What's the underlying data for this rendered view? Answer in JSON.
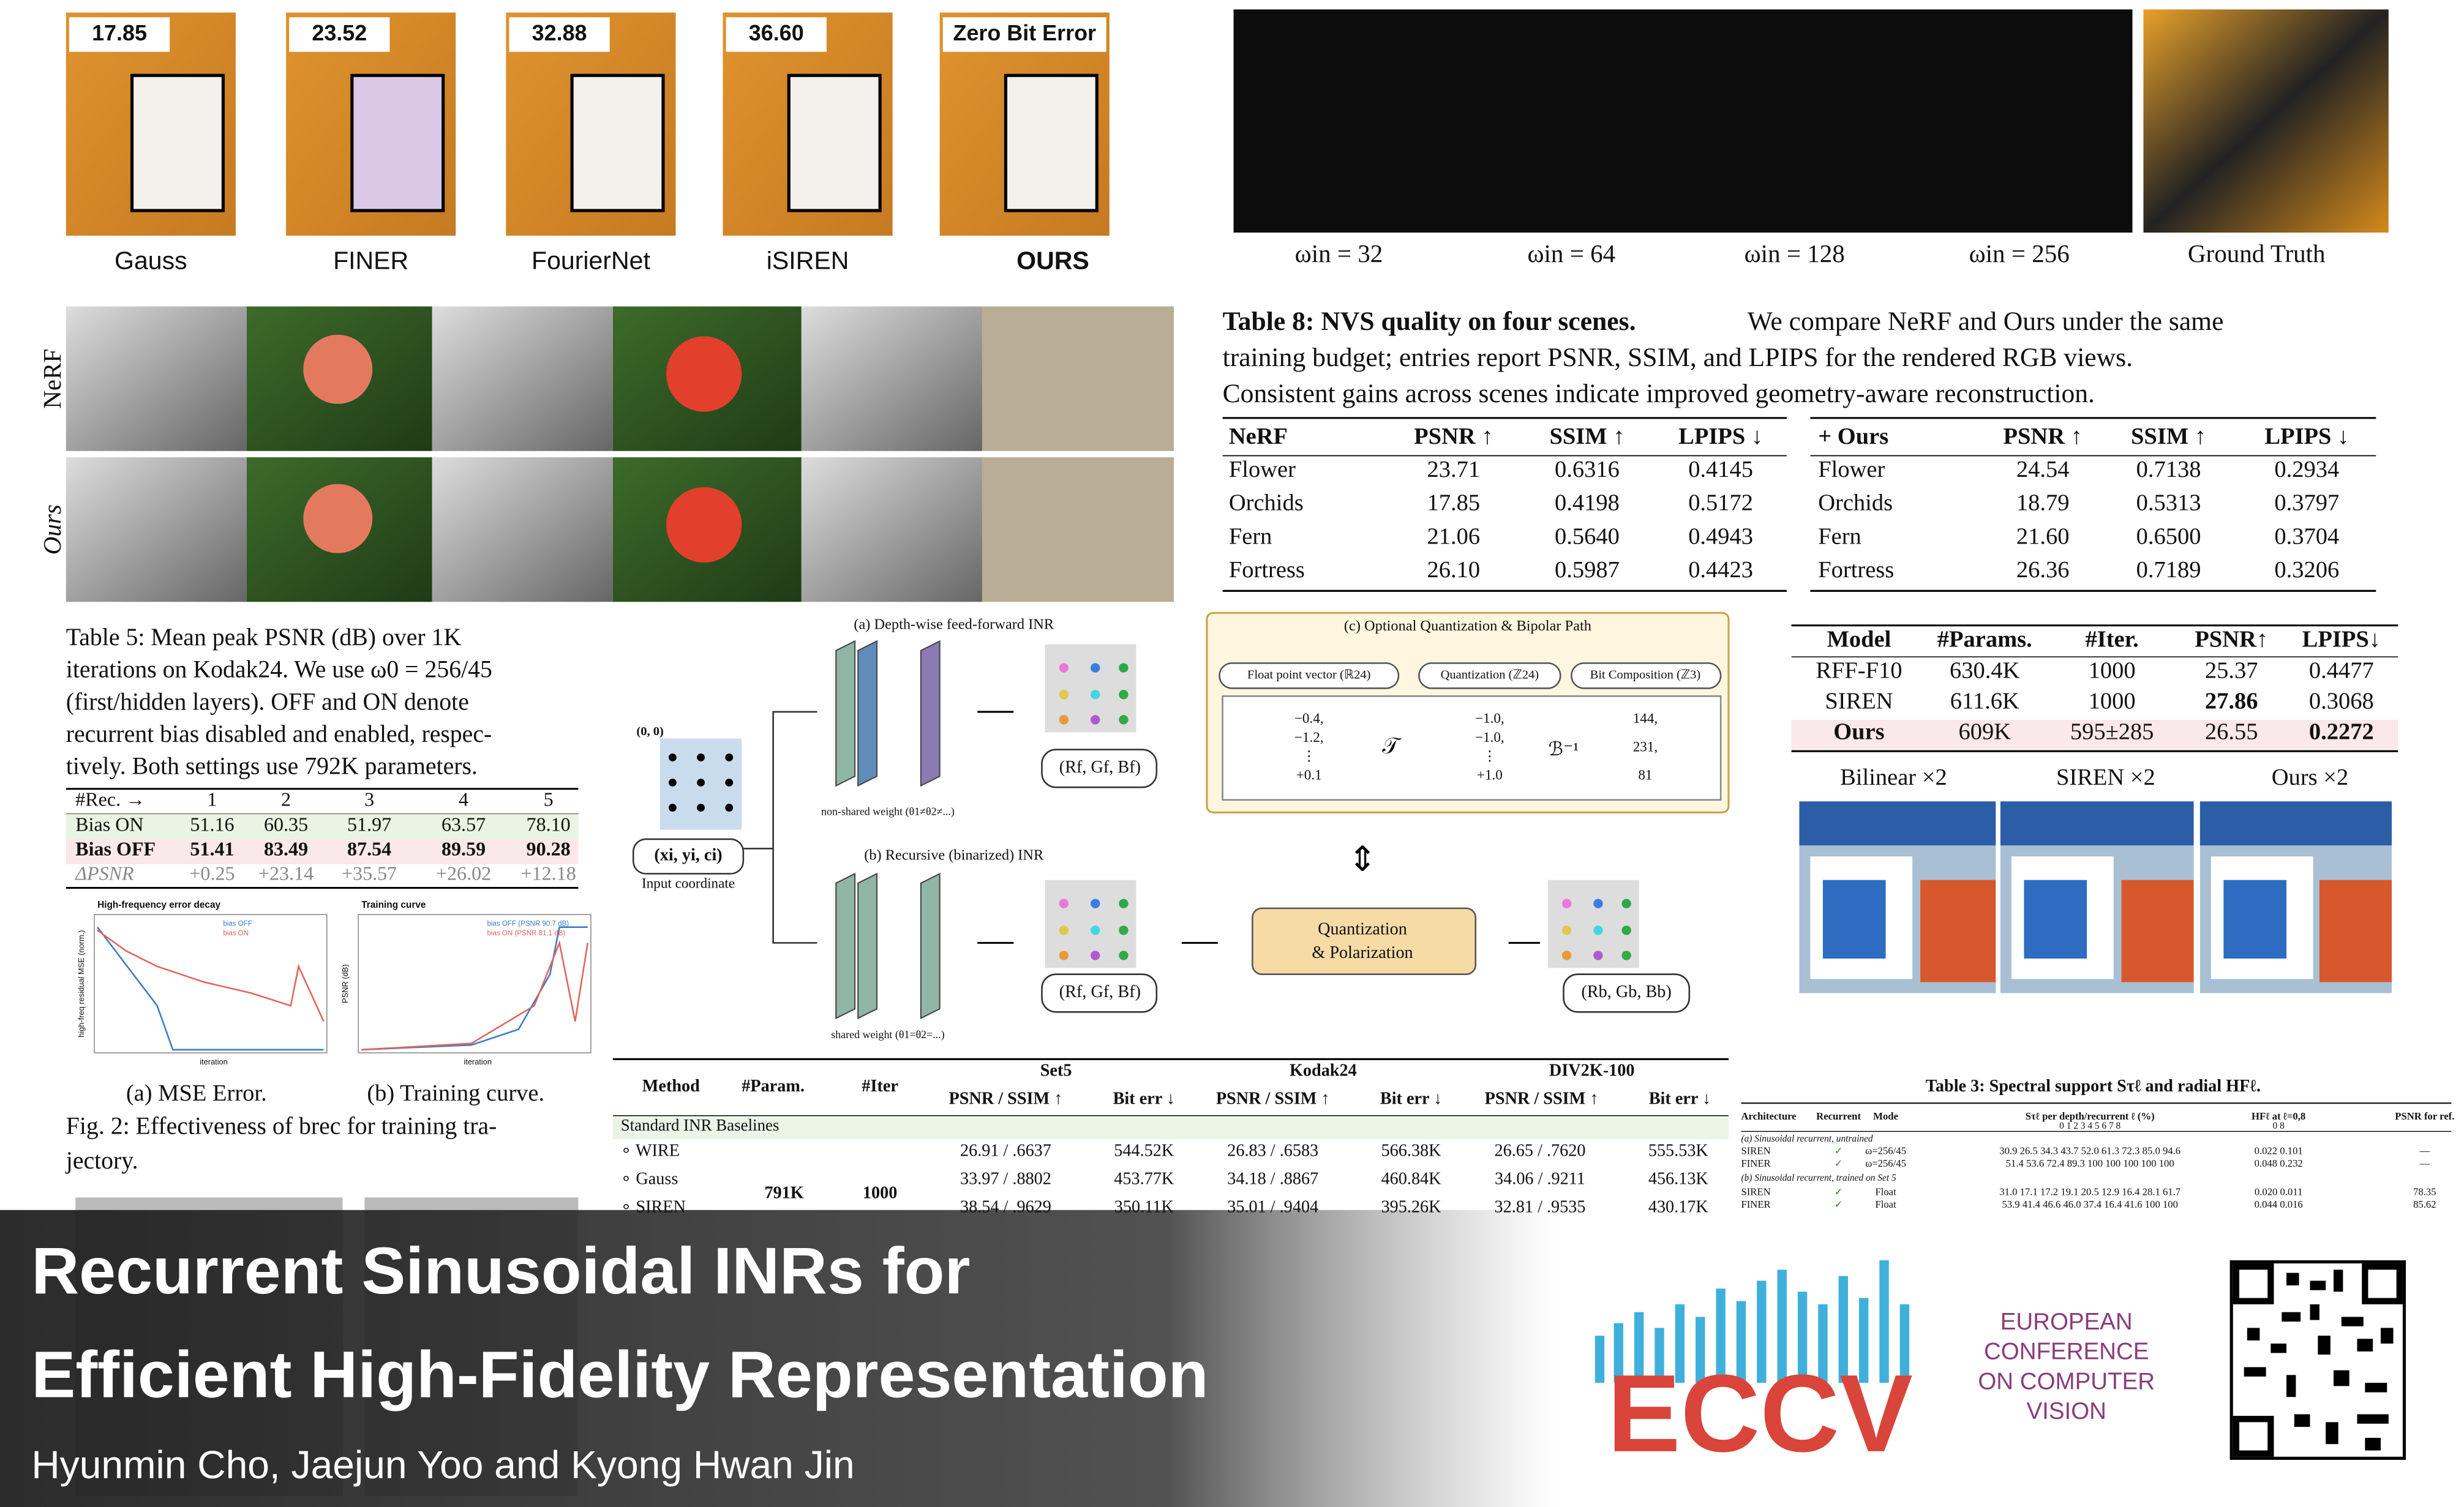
{
  "top_strip": {
    "scores": [
      "17.85",
      "23.52",
      "32.88",
      "36.60",
      "Zero Bit Error"
    ],
    "methods": [
      "Gauss",
      "FINER",
      "FourierNet",
      "iSIREN",
      "OURS"
    ]
  },
  "omega_strip": {
    "labels": [
      "ωin = 32",
      "ωin = 64",
      "ωin = 128",
      "ωin = 256",
      "Ground Truth"
    ]
  },
  "nvs_rows": [
    "NeRF",
    "Ours"
  ],
  "table8": {
    "caption_bold": "Table 8: NVS quality on four scenes.",
    "caption_lines": [
      "We compare NeRF and Ours under the same",
      "training budget; entries report PSNR, SSIM, and LPIPS for the rendered RGB views.",
      "Consistent gains across scenes indicate improved geometry-aware reconstruction."
    ],
    "left_header": [
      "NeRF",
      "PSNR ↑",
      "SSIM ↑",
      "LPIPS ↓"
    ],
    "left_rows": [
      [
        "Flower",
        "23.71",
        "0.6316",
        "0.4145"
      ],
      [
        "Orchids",
        "17.85",
        "0.4198",
        "0.5172"
      ],
      [
        "Fern",
        "21.06",
        "0.5640",
        "0.4943"
      ],
      [
        "Fortress",
        "26.10",
        "0.5987",
        "0.4423"
      ]
    ],
    "right_header": [
      "+ Ours",
      "PSNR ↑",
      "SSIM ↑",
      "LPIPS ↓"
    ],
    "right_rows": [
      [
        "Flower",
        "24.54",
        "0.7138",
        "0.2934"
      ],
      [
        "Orchids",
        "18.79",
        "0.5313",
        "0.3797"
      ],
      [
        "Fern",
        "21.60",
        "0.6500",
        "0.3704"
      ],
      [
        "Fortress",
        "26.36",
        "0.7189",
        "0.3206"
      ]
    ]
  },
  "table5": {
    "caption_lines": [
      "Table 5: Mean peak PSNR (dB) over 1K",
      "iterations on Kodak24. We use ω0 = 256/45",
      "(first/hidden layers). OFF and ON denote",
      "recurrent bias disabled and enabled, respec-",
      "tively. Both settings use 792K parameters."
    ],
    "header": [
      "#Rec. →",
      "1",
      "2",
      "3",
      "4",
      "5"
    ],
    "rows": [
      [
        "Bias ON",
        "51.16",
        "60.35",
        "51.97",
        "63.57",
        "78.10"
      ],
      [
        "Bias OFF",
        "51.41",
        "83.49",
        "87.54",
        "89.59",
        "90.28"
      ],
      [
        "ΔPSNR",
        "+0.25",
        "+23.14",
        "+35.57",
        "+26.02",
        "+12.18"
      ]
    ]
  },
  "fig2": {
    "plot_a": {
      "title": "High-frequency error decay",
      "xlabel": "iteration",
      "ylabel": "high-freq residual MSE (norm.)",
      "legend": [
        "bias OFF",
        "bias ON"
      ]
    },
    "plot_b": {
      "title": "Training curve",
      "xlabel": "iteration",
      "ylabel": "PSNR (dB)",
      "legend": [
        "bias OFF (PSNR 90.7 dB)",
        "bias ON (PSNR 81.1 dB)"
      ]
    },
    "subcaptions": [
      "(a) MSE Error.",
      "(b) Training curve."
    ],
    "caption_lines": [
      "Fig. 2: Effectiveness of brec for training tra-",
      "jectory."
    ]
  },
  "diagram": {
    "title_a": "(a) Depth-wise feed-forward INR",
    "weights_a": "non-shared weight (θ1≠θ2≠...)",
    "title_b": "(b) Recursive (binarized) INR",
    "weights_b": "shared weight (θ1=θ2=...)",
    "origin": "(0, 0)",
    "input": "(xi, yi, ci)",
    "input_label": "Input coordinate",
    "out_f": "(Rf, Gf, Bf)",
    "out_b": "(Rb, Gb, Bb)",
    "quant_box": [
      "Quantization",
      "& Polarization"
    ],
    "title_c": "(c) Optional Quantization & Bipolar Path",
    "pills": [
      "Float point vector (ℝ24)",
      "Quantization (ℤ24)",
      "Bit Composition (ℤ3)"
    ],
    "vec_float": [
      "−0.4,",
      "−1.2,",
      "⋮",
      "+0.1"
    ],
    "map_t": "𝒯",
    "vec_quant": [
      "−1.0,",
      "−1.0,",
      "⋮",
      "+1.0"
    ],
    "map_b": "ℬ⁻¹",
    "vec_bits": [
      "144,",
      "231,",
      "81"
    ]
  },
  "model_table": {
    "header": [
      "Model",
      "#Params.",
      "#Iter.",
      "PSNR↑",
      "LPIPS↓"
    ],
    "rows": [
      [
        "RFF-F10",
        "630.4K",
        "1000",
        "25.37",
        "0.4477"
      ],
      [
        "SIREN",
        "611.6K",
        "1000",
        "27.86",
        "0.3068"
      ],
      [
        "Ours",
        "609K",
        "595±285",
        "26.55",
        "0.2272"
      ]
    ]
  },
  "sr_labels": [
    "Bilinear ×2",
    "SIREN ×2",
    "Ours ×2"
  ],
  "main_table": {
    "header": [
      "Method",
      "#Param.",
      "#Iter"
    ],
    "datasets": [
      "Set5",
      "Kodak24",
      "DIV2K-100"
    ],
    "subheader": [
      "PSNR / SSIM ↑",
      "Bit err ↓"
    ],
    "section": "Standard INR Baselines",
    "params": "791K",
    "iters": "1000",
    "rows": [
      [
        "∘ WIRE",
        "26.91 / .6637",
        "544.52K",
        "26.83 / .6583",
        "566.38K",
        "26.65 / .7620",
        "555.53K"
      ],
      [
        "∘ Gauss",
        "33.97 / .8802",
        "453.77K",
        "34.18 / .8867",
        "460.84K",
        "34.06 / .9211",
        "456.13K"
      ],
      [
        "∘ SIREN",
        "38.54 / .9629",
        "350.11K",
        "35.01 / .9404",
        "395.26K",
        "32.81 / .9535",
        "430.17K"
      ]
    ]
  },
  "table3": {
    "title": "Table 3: Spectral support Sτℓ and radial HFℓ.",
    "header": [
      "Architecture",
      "Recurrent",
      "Mode",
      "Sτℓ per depth/recurrent ℓ (%)",
      "HFℓ at ℓ=0,8",
      "PSNR for ref."
    ],
    "index": [
      "0 1 2 3 4 5 6 7 8",
      "0 8"
    ],
    "section_a": "(a) Sinusoidal recurrent, untrained",
    "rows_a": [
      [
        "SIREN",
        "✓",
        "ω=256/45",
        "30.9 26.5 34.3 43.7 52.0 61.3 72.3 85.0 94.6",
        "0.022 0.101",
        "—"
      ],
      [
        "FINER",
        "✓",
        "ω=256/45",
        "51.4 53.6 72.4 89.3 100 100 100 100 100",
        "0.048 0.232",
        "—"
      ]
    ],
    "section_b": "(b) Sinusoidal recurrent, trained on Set 5",
    "rows_b": [
      [
        "SIREN",
        "✓",
        "Float",
        "31.0 17.1 17.2 19.1 20.5 12.9 16.4 28.1 61.7",
        "0.020 0.011",
        "78.35"
      ],
      [
        "FINER",
        "✓",
        "Float",
        "53.9 41.4 46.6 46.0 37.4 16.4 41.6 100 100",
        "0.044 0.016",
        "85.62"
      ]
    ]
  },
  "banner": {
    "title_lines": [
      "Recurrent Sinusoidal INRs for",
      "Efficient High-Fidelity Representation"
    ],
    "authors": "Hyunmin Cho, Jaejun Yoo and Kyong Hwan Jin"
  },
  "eccv": {
    "logo": "ECCV",
    "lines": [
      "EUROPEAN",
      "CONFERENCE",
      "ON COMPUTER",
      "VISION"
    ]
  }
}
